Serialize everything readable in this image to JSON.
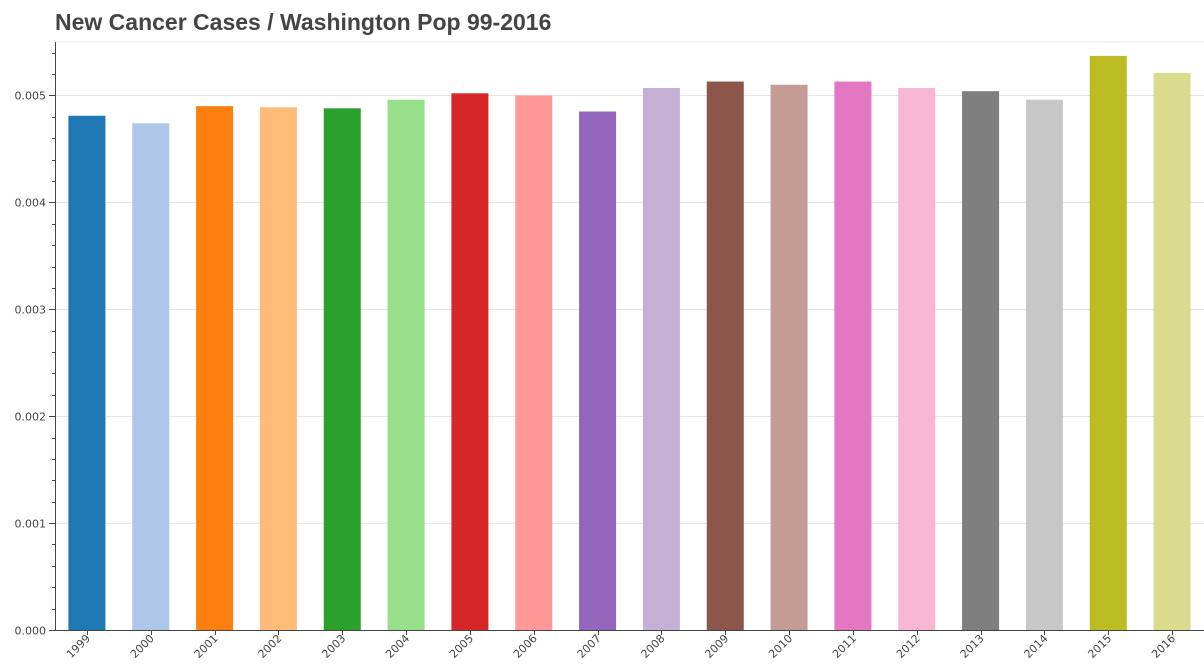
{
  "chart_data": {
    "type": "bar",
    "title": "New Cancer Cases / Washington Pop 99-2016",
    "xlabel": "",
    "ylabel": "",
    "ylim": [
      0,
      0.0055
    ],
    "yticks": [
      "0.000",
      "0.001",
      "0.002",
      "0.003",
      "0.004",
      "0.005"
    ],
    "ytick_values": [
      0,
      0.001,
      0.002,
      0.003,
      0.004,
      0.005
    ],
    "categories": [
      "1999",
      "2000",
      "2001",
      "2002",
      "2003",
      "2004",
      "2005",
      "2006",
      "2007",
      "2008",
      "2009",
      "2010",
      "2011",
      "2012",
      "2013",
      "2014",
      "2015",
      "2016"
    ],
    "values": [
      0.00481,
      0.00474,
      0.0049,
      0.00489,
      0.00488,
      0.00496,
      0.00502,
      0.005,
      0.00485,
      0.00507,
      0.00513,
      0.0051,
      0.00513,
      0.00507,
      0.00504,
      0.00496,
      0.00537,
      0.00521
    ],
    "colors": [
      "#1f77b4",
      "#aec7e8",
      "#ff7f0e",
      "#ffbb78",
      "#2ca02c",
      "#98df8a",
      "#d62728",
      "#ff9896",
      "#9467bd",
      "#c5b0d5",
      "#8c564b",
      "#c49c94",
      "#e377c2",
      "#f7b6d2",
      "#7f7f7f",
      "#c7c7c7",
      "#bcbd22",
      "#dbdb8d"
    ],
    "grid": "horizontal",
    "legend": "none"
  }
}
